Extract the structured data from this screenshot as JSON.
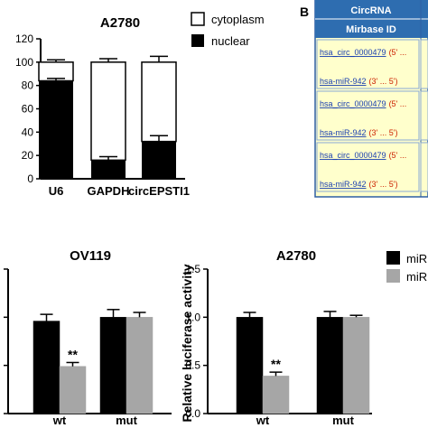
{
  "panel_b": {
    "label": "B",
    "table": {
      "header_line1": "CircRNA",
      "header_line2": "Mirbase ID",
      "rows": [
        {
          "circ": "hsa_circ_0000479",
          "circ_dir": "(5' ...",
          "mir": "hsa-miR-942",
          "mir_dir": "(3' ... 5')"
        },
        {
          "circ": "hsa_circ_0000479",
          "circ_dir": "(5' ...",
          "mir": "hsa-miR-942",
          "mir_dir": "(3' ... 5')"
        },
        {
          "circ": "hsa_circ_0000479",
          "circ_dir": "(5' ...",
          "mir": "hsa-miR-942",
          "mir_dir": "(3' ... 5')"
        }
      ]
    }
  },
  "chart_data": [
    {
      "type": "bar",
      "stacked": true,
      "title": "A2780",
      "categories": [
        "U6",
        "GAPDH",
        "circEPSTI1"
      ],
      "series": [
        {
          "name": "nuclear",
          "values": [
            84,
            16,
            32
          ],
          "errors": [
            2,
            3,
            5
          ],
          "color": "#000000"
        },
        {
          "name": "cytoplasm",
          "values": [
            16,
            84,
            68
          ],
          "errors": [
            2,
            3,
            5
          ],
          "color": "#ffffff"
        }
      ],
      "ylim": [
        0,
        120
      ],
      "yticks": [
        "0",
        "20",
        "40",
        "60",
        "80",
        "100",
        "120"
      ],
      "legend_placement": "right"
    },
    {
      "type": "bar",
      "title": "OV119",
      "categories": [
        "wt",
        "mut"
      ],
      "series": [
        {
          "values": [
            0.96,
            1.0
          ],
          "errors": [
            0.07,
            0.08
          ],
          "color": "#000000"
        },
        {
          "values": [
            0.49,
            1.0
          ],
          "errors": [
            0.04,
            0.05
          ],
          "color": "#a6a6a6"
        }
      ],
      "significance": [
        {
          "category": "wt",
          "series": 1,
          "label": "**"
        }
      ],
      "ylim": [
        0,
        1.5
      ],
      "yticks": [],
      "ylabel": ""
    },
    {
      "type": "bar",
      "title": "A2780",
      "categories": [
        "wt",
        "mut"
      ],
      "series": [
        {
          "name": "miR",
          "values": [
            1.0,
            1.0
          ],
          "errors": [
            0.05,
            0.06
          ],
          "color": "#000000"
        },
        {
          "name": "miR",
          "values": [
            0.39,
            1.0
          ],
          "errors": [
            0.04,
            0.02
          ],
          "color": "#a6a6a6"
        }
      ],
      "significance": [
        {
          "category": "wt",
          "series": 1,
          "label": "**"
        }
      ],
      "ylim": [
        0,
        1.5
      ],
      "yticks": [
        "0.0",
        "0.5",
        "1.0",
        "1.5"
      ],
      "ylabel": "Relative luciferase activity",
      "legend_placement": "right"
    }
  ]
}
